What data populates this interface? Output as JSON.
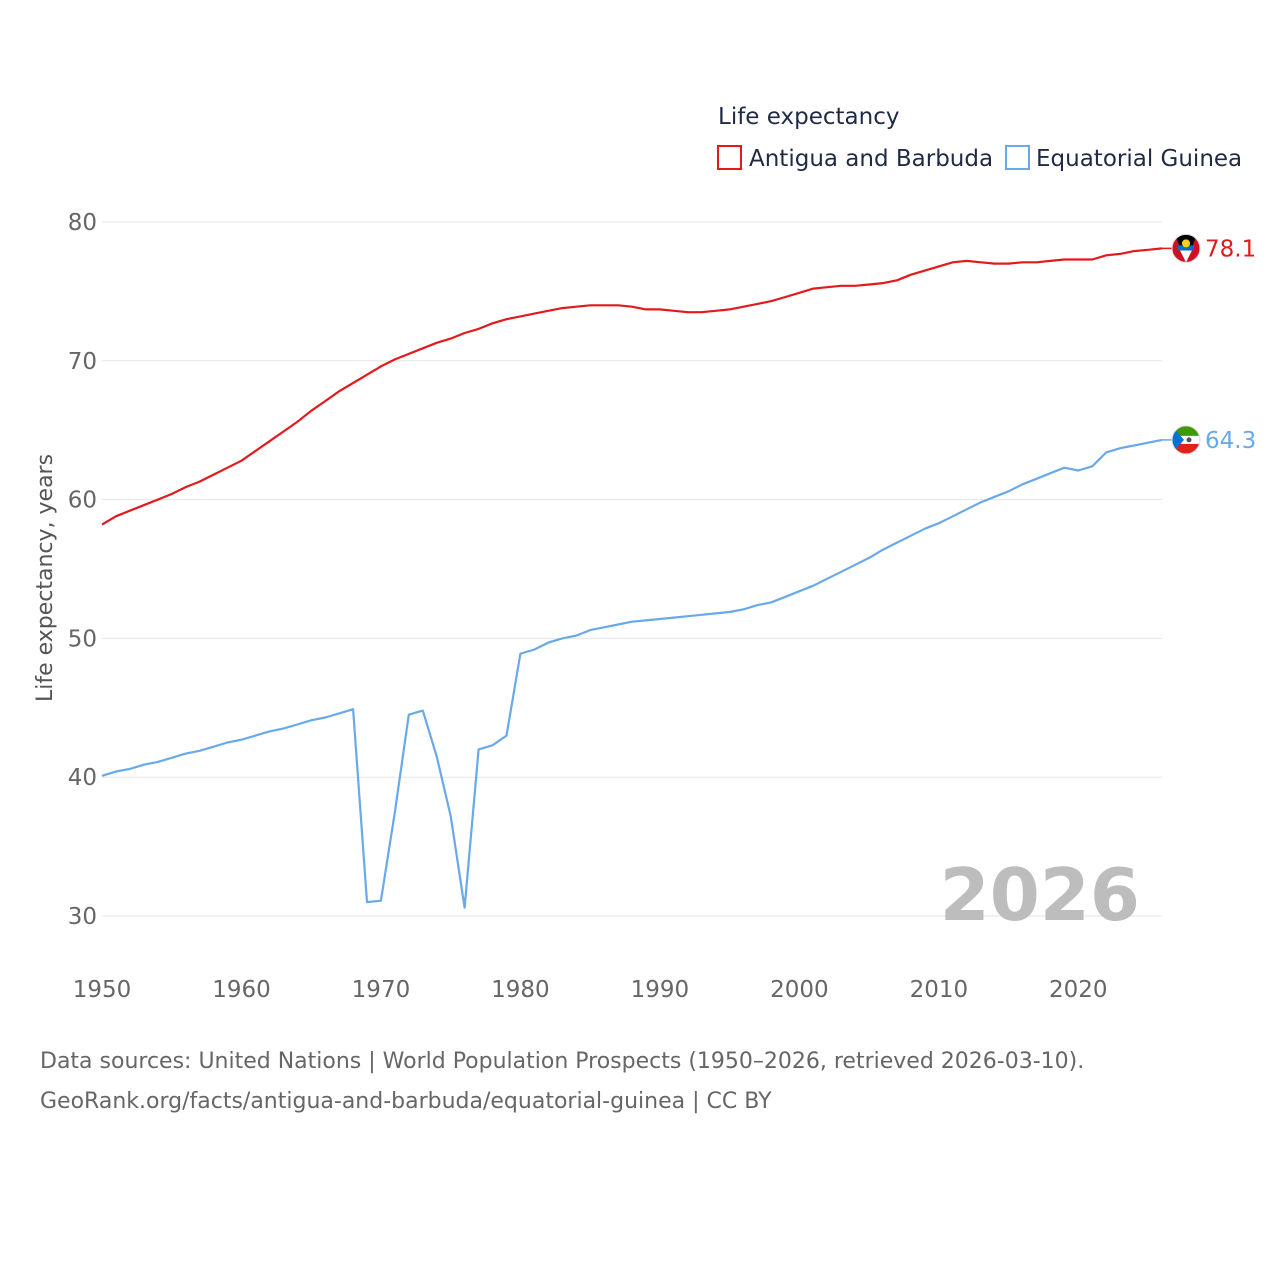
{
  "chart_data": {
    "type": "line",
    "title": "",
    "legend_title": "Life expectancy",
    "ylabel": "Life expectancy, years",
    "xlabel": "",
    "xlim": [
      1950,
      2026
    ],
    "ylim": [
      30,
      80
    ],
    "x_ticks": [
      1950,
      1960,
      1970,
      1980,
      1990,
      2000,
      2010,
      2020
    ],
    "y_ticks": [
      30,
      40,
      50,
      60,
      70,
      80
    ],
    "year_label": "2026",
    "series": [
      {
        "name": "Antigua and Barbuda",
        "color": "#e31a1c",
        "end_label": "78.1",
        "flag": "antigua-barbuda-flag-icon",
        "x": [
          1950,
          1951,
          1952,
          1953,
          1954,
          1955,
          1956,
          1957,
          1958,
          1959,
          1960,
          1961,
          1962,
          1963,
          1964,
          1965,
          1966,
          1967,
          1968,
          1969,
          1970,
          1971,
          1972,
          1973,
          1974,
          1975,
          1976,
          1977,
          1978,
          1979,
          1980,
          1981,
          1982,
          1983,
          1984,
          1985,
          1986,
          1987,
          1988,
          1989,
          1990,
          1991,
          1992,
          1993,
          1994,
          1995,
          1996,
          1997,
          1998,
          1999,
          2000,
          2001,
          2002,
          2003,
          2004,
          2005,
          2006,
          2007,
          2008,
          2009,
          2010,
          2011,
          2012,
          2013,
          2014,
          2015,
          2016,
          2017,
          2018,
          2019,
          2020,
          2021,
          2022,
          2023,
          2024,
          2025,
          2026
        ],
        "values": [
          58.2,
          58.8,
          59.2,
          59.6,
          60.0,
          60.4,
          60.9,
          61.3,
          61.8,
          62.3,
          62.8,
          63.5,
          64.2,
          64.9,
          65.6,
          66.4,
          67.1,
          67.8,
          68.4,
          69.0,
          69.6,
          70.1,
          70.5,
          70.9,
          71.3,
          71.6,
          72.0,
          72.3,
          72.7,
          73.0,
          73.2,
          73.4,
          73.6,
          73.8,
          73.9,
          74.0,
          74.0,
          74.0,
          73.9,
          73.7,
          73.7,
          73.6,
          73.5,
          73.5,
          73.6,
          73.7,
          73.9,
          74.1,
          74.3,
          74.6,
          74.9,
          75.2,
          75.3,
          75.4,
          75.4,
          75.5,
          75.6,
          75.8,
          76.2,
          76.5,
          76.8,
          77.1,
          77.2,
          77.1,
          77.0,
          77.0,
          77.1,
          77.1,
          77.2,
          77.3,
          77.3,
          77.3,
          77.6,
          77.7,
          77.9,
          78.0,
          78.1
        ]
      },
      {
        "name": "Equatorial Guinea",
        "color": "#6aa9e9",
        "end_label": "64.3",
        "flag": "equatorial-guinea-flag-icon",
        "x": [
          1950,
          1951,
          1952,
          1953,
          1954,
          1955,
          1956,
          1957,
          1958,
          1959,
          1960,
          1961,
          1962,
          1963,
          1964,
          1965,
          1966,
          1967,
          1968,
          1969,
          1970,
          1971,
          1972,
          1973,
          1974,
          1975,
          1976,
          1977,
          1978,
          1979,
          1980,
          1981,
          1982,
          1983,
          1984,
          1985,
          1986,
          1987,
          1988,
          1989,
          1990,
          1991,
          1992,
          1993,
          1994,
          1995,
          1996,
          1997,
          1998,
          1999,
          2000,
          2001,
          2002,
          2003,
          2004,
          2005,
          2006,
          2007,
          2008,
          2009,
          2010,
          2011,
          2012,
          2013,
          2014,
          2015,
          2016,
          2017,
          2018,
          2019,
          2020,
          2021,
          2022,
          2023,
          2024,
          2025,
          2026
        ],
        "values": [
          40.1,
          40.4,
          40.6,
          40.9,
          41.1,
          41.4,
          41.7,
          41.9,
          42.2,
          42.5,
          42.7,
          43.0,
          43.3,
          43.5,
          43.8,
          44.1,
          44.3,
          44.6,
          44.9,
          31.0,
          31.1,
          37.5,
          44.5,
          44.8,
          41.5,
          37.2,
          30.6,
          42.0,
          42.3,
          43.0,
          48.9,
          49.2,
          49.7,
          50.0,
          50.2,
          50.6,
          50.8,
          51.0,
          51.2,
          51.3,
          51.4,
          51.5,
          51.6,
          51.7,
          51.8,
          51.9,
          52.1,
          52.4,
          52.6,
          53.0,
          53.4,
          53.8,
          54.3,
          54.8,
          55.3,
          55.8,
          56.4,
          56.9,
          57.4,
          57.9,
          58.3,
          58.8,
          59.3,
          59.8,
          60.2,
          60.6,
          61.1,
          61.5,
          61.9,
          62.3,
          62.1,
          62.4,
          63.4,
          63.7,
          63.9,
          64.1,
          64.3
        ]
      }
    ]
  },
  "footer": {
    "line1": "Data sources: United Nations | World Population Prospects (1950–2026, retrieved 2026-03-10).",
    "line2": "GeoRank.org/facts/antigua-and-barbuda/equatorial-guinea | CC BY"
  }
}
